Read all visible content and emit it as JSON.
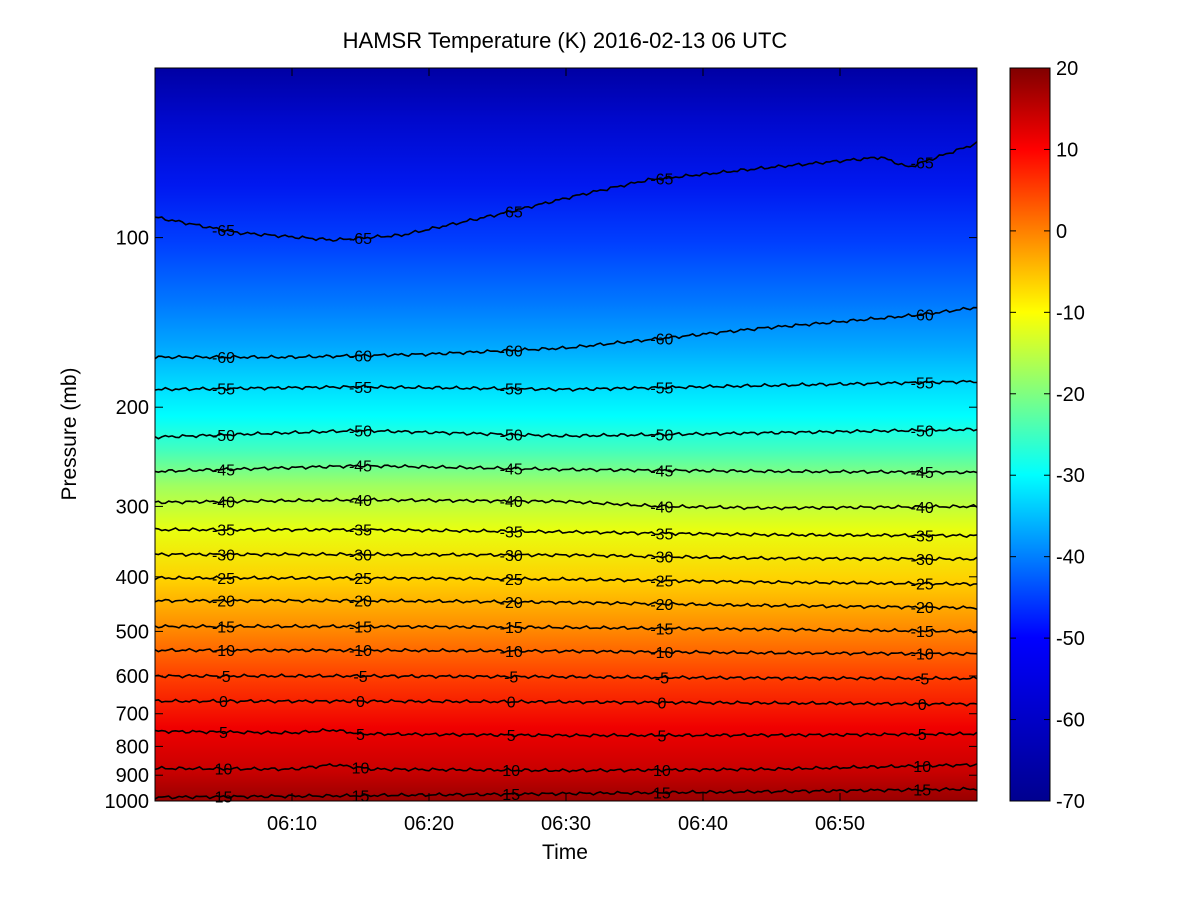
{
  "chart_data": {
    "type": "heatmap",
    "title": "HAMSR  Temperature (K) 2016-02-13 06 UTC",
    "xlabel": "Time",
    "ylabel": "Pressure (mb)",
    "x_ticks": [
      "06:10",
      "06:20",
      "06:30",
      "06:40",
      "06:50"
    ],
    "x_tick_minutes": [
      10,
      20,
      30,
      40,
      50
    ],
    "x_range_minutes": [
      0,
      60
    ],
    "y_scale": "log",
    "y_ticks": [
      100,
      200,
      300,
      400,
      500,
      600,
      700,
      800,
      900,
      1000
    ],
    "y_range": [
      50,
      1000
    ],
    "colorbar": {
      "range": [
        -70,
        20
      ],
      "ticks": [
        20,
        10,
        0,
        -10,
        -20,
        -30,
        -40,
        -50,
        -60,
        -70
      ],
      "colormap": "jet"
    },
    "contour_levels": [
      -65,
      -60,
      -55,
      -50,
      -45,
      -40,
      -35,
      -30,
      -25,
      -20,
      -15,
      -10,
      -5,
      0,
      5,
      10,
      15
    ],
    "contour_label_minutes": [
      5,
      15,
      26,
      37,
      56
    ],
    "contours": [
      {
        "level": -65,
        "minutes": [
          0,
          6,
          13,
          18,
          25,
          31,
          36,
          45,
          53,
          55,
          60
        ],
        "pressure": [
          92,
          98,
          101,
          99,
          91,
          84,
          79,
          75,
          72,
          75,
          68
        ]
      },
      {
        "level": -60,
        "minutes": [
          0,
          10,
          20,
          30,
          37,
          44,
          50,
          56,
          60
        ],
        "pressure": [
          163,
          163,
          161,
          157,
          151,
          145,
          141,
          137,
          133
        ]
      },
      {
        "level": -55,
        "minutes": [
          0,
          15,
          30,
          45,
          60
        ],
        "pressure": [
          186,
          184,
          186,
          183,
          180
        ]
      },
      {
        "level": -50,
        "minutes": [
          0,
          15,
          30,
          45,
          60
        ],
        "pressure": [
          226,
          220,
          225,
          222,
          219
        ]
      },
      {
        "level": -45,
        "minutes": [
          0,
          15,
          30,
          45,
          60
        ],
        "pressure": [
          260,
          254,
          258,
          260,
          261
        ]
      },
      {
        "level": -40,
        "minutes": [
          0,
          15,
          30,
          37,
          45,
          60
        ],
        "pressure": [
          295,
          292,
          294,
          300,
          302,
          300
        ]
      },
      {
        "level": -35,
        "minutes": [
          0,
          15,
          30,
          45,
          60
        ],
        "pressure": [
          330,
          330,
          333,
          337,
          338
        ]
      },
      {
        "level": -30,
        "minutes": [
          0,
          15,
          30,
          45,
          60
        ],
        "pressure": [
          365,
          365,
          366,
          371,
          372
        ]
      },
      {
        "level": -25,
        "minutes": [
          0,
          15,
          30,
          45,
          60
        ],
        "pressure": [
          402,
          402,
          404,
          409,
          412
        ]
      },
      {
        "level": -20,
        "minutes": [
          0,
          15,
          30,
          45,
          60
        ],
        "pressure": [
          441,
          441,
          444,
          450,
          454
        ]
      },
      {
        "level": -15,
        "minutes": [
          0,
          15,
          30,
          45,
          60
        ],
        "pressure": [
          490,
          490,
          492,
          496,
          500
        ]
      },
      {
        "level": -10,
        "minutes": [
          0,
          15,
          30,
          45,
          60
        ],
        "pressure": [
          540,
          540,
          542,
          546,
          548
        ]
      },
      {
        "level": -5,
        "minutes": [
          0,
          15,
          30,
          45,
          60
        ],
        "pressure": [
          600,
          600,
          602,
          605,
          606
        ]
      },
      {
        "level": 0,
        "minutes": [
          0,
          15,
          30,
          45,
          60
        ],
        "pressure": [
          665,
          665,
          667,
          670,
          673
        ]
      },
      {
        "level": 5,
        "minutes": [
          0,
          10,
          13,
          15,
          30,
          45,
          60
        ],
        "pressure": [
          752,
          757,
          748,
          760,
          765,
          764,
          760
        ]
      },
      {
        "level": 10,
        "minutes": [
          0,
          10,
          13,
          16,
          30,
          45,
          60
        ],
        "pressure": [
          875,
          878,
          862,
          878,
          883,
          878,
          862
        ]
      },
      {
        "level": 15,
        "minutes": [
          0,
          15,
          30,
          45,
          60
        ],
        "pressure": [
          985,
          978,
          970,
          962,
          952
        ]
      }
    ]
  }
}
